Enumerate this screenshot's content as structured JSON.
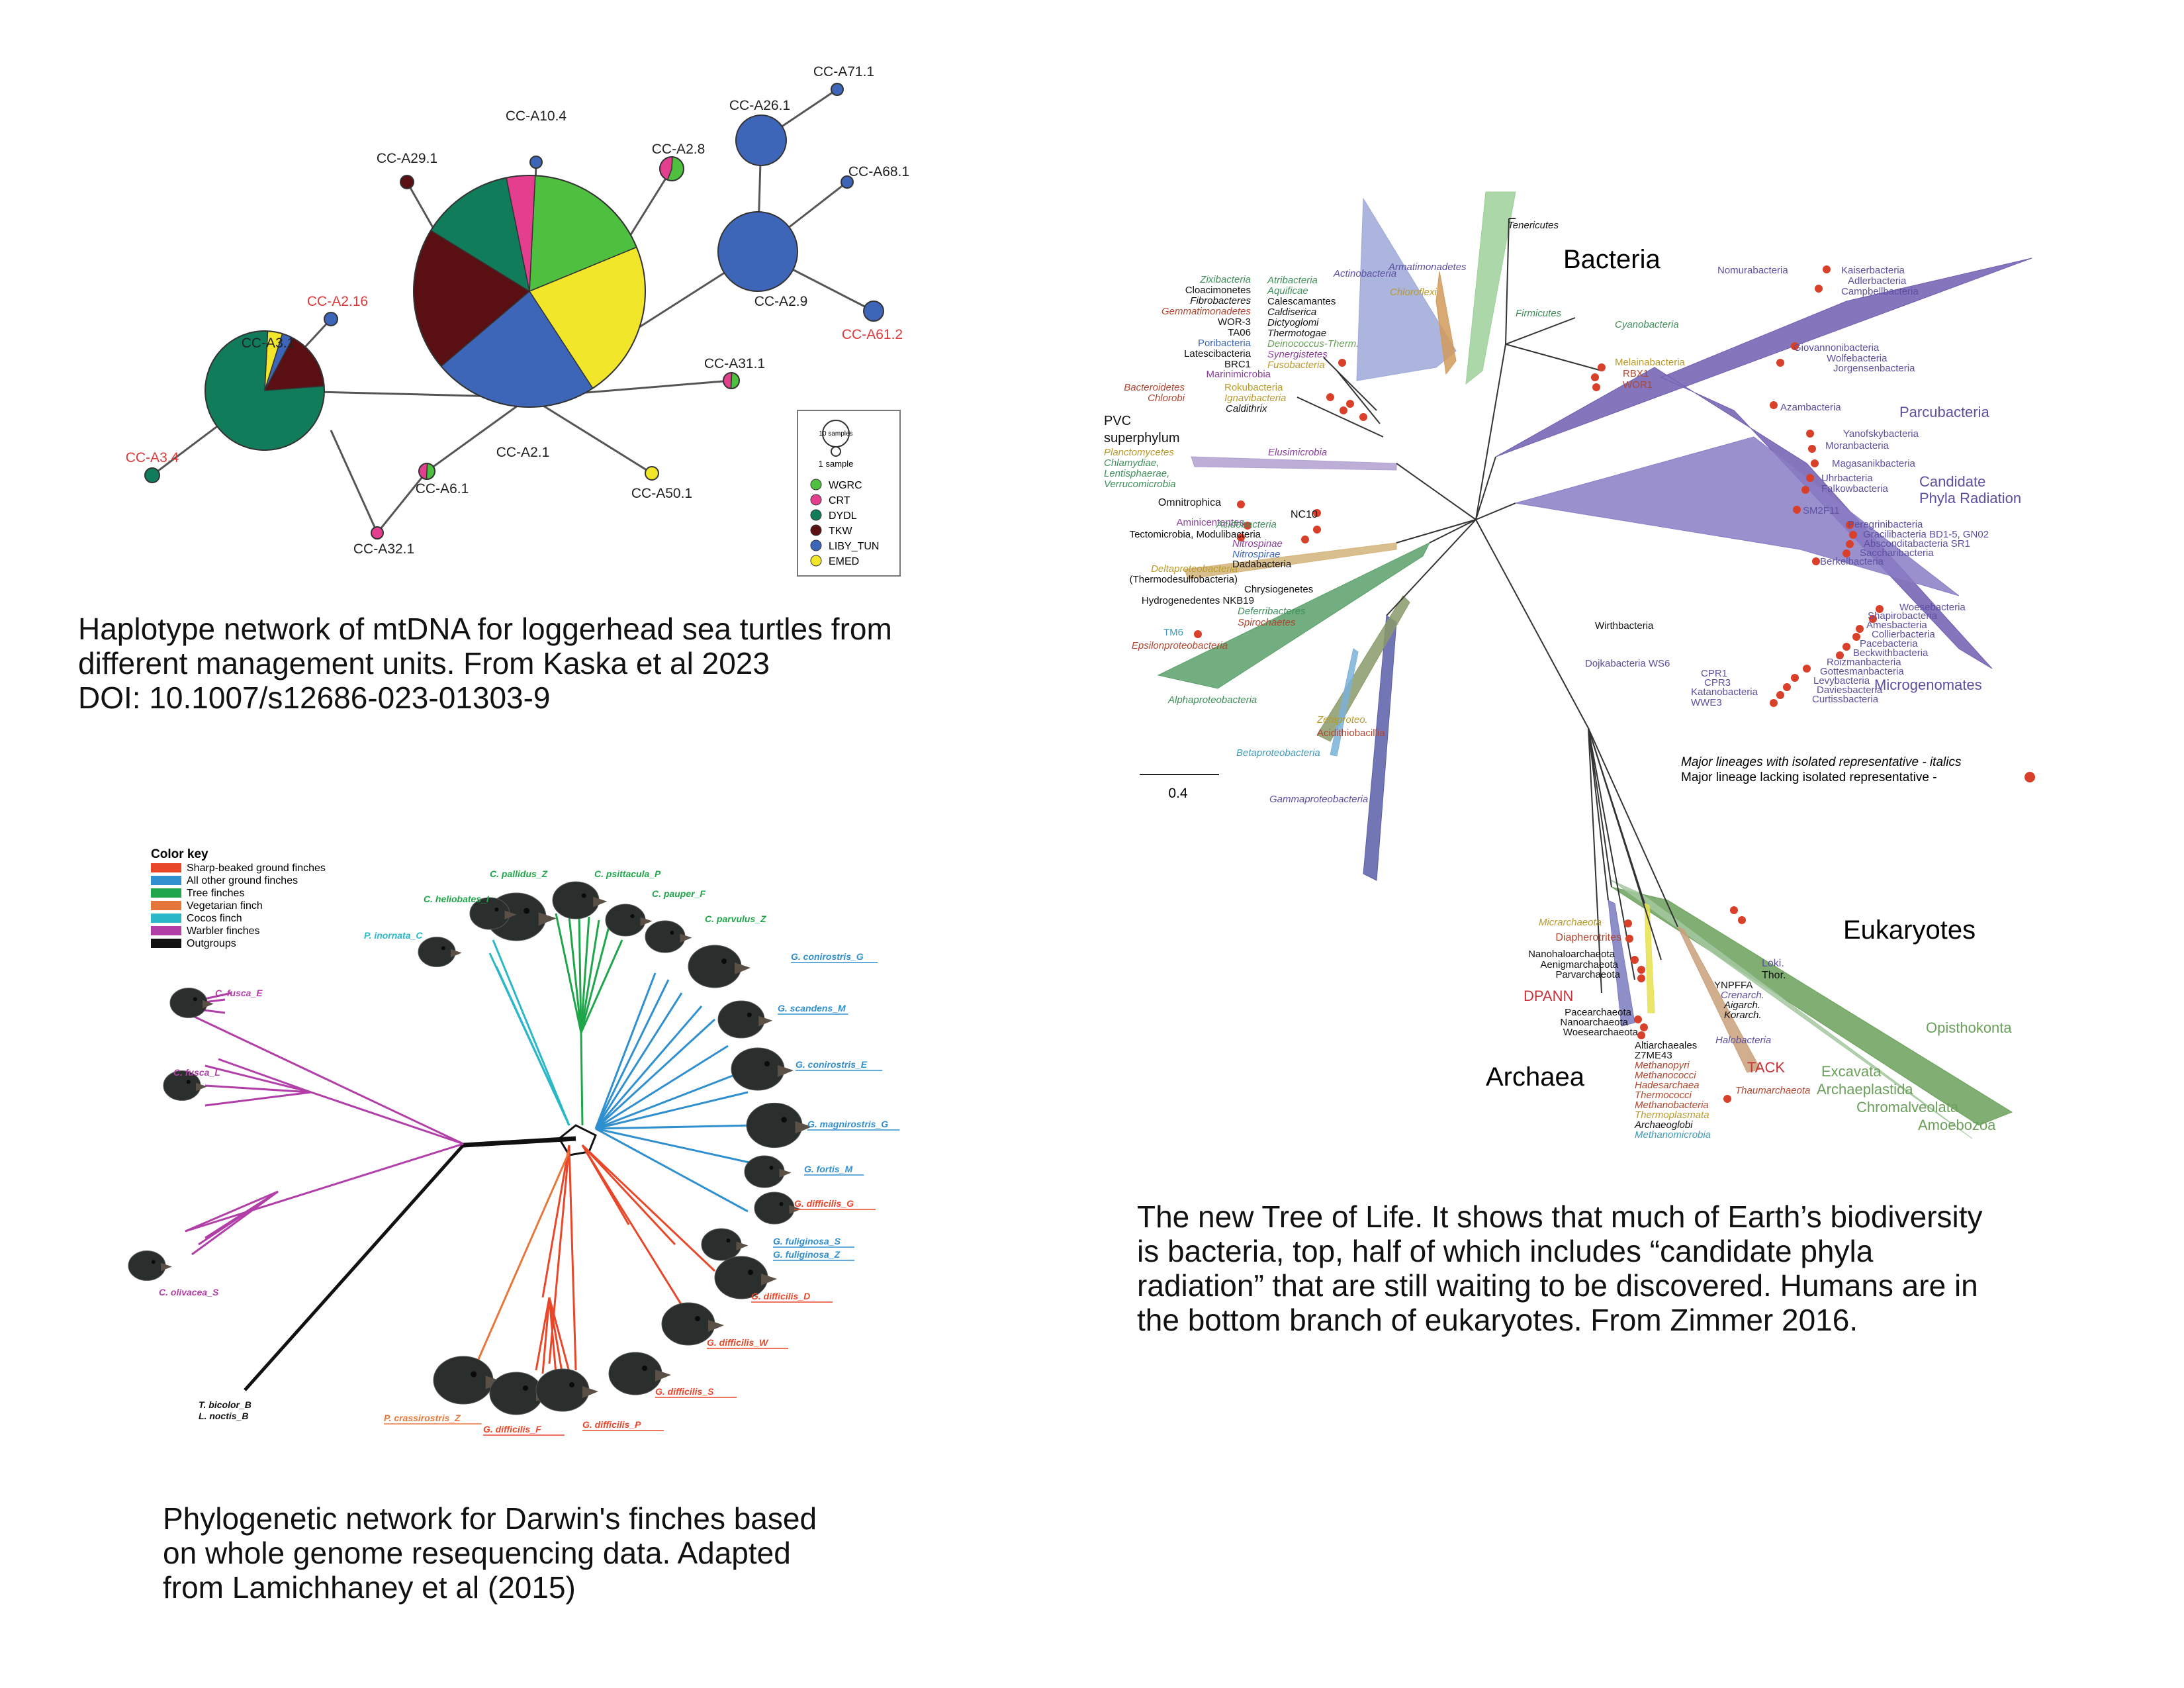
{
  "haplotype_network": {
    "nodes": [
      {
        "id": "CC-A2.1",
        "color": "#222222"
      },
      {
        "id": "CC-A3.1",
        "color": "#222222"
      },
      {
        "id": "CC-A2.9",
        "color": "#222222"
      },
      {
        "id": "CC-A26.1",
        "color": "#222222"
      },
      {
        "id": "CC-A71.1",
        "color": "#222222"
      },
      {
        "id": "CC-A68.1",
        "color": "#222222"
      },
      {
        "id": "CC-A61.2",
        "color": "#d93a3a"
      },
      {
        "id": "CC-A10.4",
        "color": "#222222"
      },
      {
        "id": "CC-A29.1",
        "color": "#222222"
      },
      {
        "id": "CC-A2.8",
        "color": "#222222"
      },
      {
        "id": "CC-A2.16",
        "color": "#d93a3a"
      },
      {
        "id": "CC-A31.1",
        "color": "#222222"
      },
      {
        "id": "CC-A50.1",
        "color": "#222222"
      },
      {
        "id": "CC-A6.1",
        "color": "#222222"
      },
      {
        "id": "CC-A32.1",
        "color": "#222222"
      },
      {
        "id": "CC-A3.4",
        "color": "#d93a3a"
      }
    ],
    "size_legend": [
      "10 samples",
      "1 sample"
    ],
    "legend": [
      {
        "name": "WGRC",
        "color": "#4fbf3f"
      },
      {
        "name": "CRT",
        "color": "#e43f8f"
      },
      {
        "name": "DYDL",
        "color": "#117c5a"
      },
      {
        "name": "TKW",
        "color": "#5a0f12"
      },
      {
        "name": "LIBY_TUN",
        "color": "#3e66b8"
      },
      {
        "name": "EMED",
        "color": "#f2e62a"
      }
    ],
    "caption": [
      "Haplotype network of mtDNA for loggerhead sea turtles from",
      "different management units. From Kaska et al 2023",
      "DOI: 10.1007/s12686-023-01303-9"
    ]
  },
  "tree_of_life": {
    "domains": [
      {
        "name": "Bacteria",
        "color": "#5c4fa0"
      },
      {
        "name": "Eukaryotes",
        "color": "#6aa05a"
      },
      {
        "name": "Archaea",
        "color": "#c8323a"
      }
    ],
    "labels_left": [
      {
        "text": "Zixibacteria",
        "color": "#3f8f5a"
      },
      {
        "text": "Cloacimonetes",
        "color": "#111111"
      },
      {
        "text": "Fibrobacteres",
        "color": "#111111"
      },
      {
        "text": "Gemmatimonadetes",
        "color": "#b0462f"
      },
      {
        "text": "WOR-3",
        "color": "#111111"
      },
      {
        "text": "TA06",
        "color": "#111111"
      },
      {
        "text": "Poribacteria",
        "color": "#3e66b8"
      },
      {
        "text": "Latescibacteria",
        "color": "#111111"
      },
      {
        "text": "BRC1",
        "color": "#111111"
      },
      {
        "text": "Marinimicrobia",
        "color": "#8a3f9a"
      },
      {
        "text": "Bacteroidetes",
        "color": "#b0462f"
      },
      {
        "text": "Chlorobi",
        "color": "#b0462f"
      },
      {
        "text": "PVC",
        "color": "#111111"
      },
      {
        "text": "superphylum",
        "color": "#111111"
      },
      {
        "text": "Planctomycetes",
        "color": "#b89a2a"
      },
      {
        "text": "Chlamydiae,",
        "color": "#3f8f5a"
      },
      {
        "text": "Lentisphaerae,",
        "color": "#3f8f5a"
      },
      {
        "text": "Verrucomicrobia",
        "color": "#3f8f5a"
      },
      {
        "text": "Omnitrophica",
        "color": "#111111"
      },
      {
        "text": "Aminicentantes",
        "color": "#8a3f9a"
      },
      {
        "text": "Tectomicrobia, Modulibacteria",
        "color": "#111111"
      },
      {
        "text": "Deltaproteobacteria",
        "color": "#b89a2a"
      },
      {
        "text": "(Thermodesulfobacteria)",
        "color": "#111111"
      },
      {
        "text": "Hydrogenedentes NKB19",
        "color": "#111111"
      },
      {
        "text": "TM6",
        "color": "#3e9ab8"
      },
      {
        "text": "Epsilonproteobacteria",
        "color": "#b0462f"
      },
      {
        "text": "Alphaproteobacteria",
        "color": "#3f8f5a"
      }
    ],
    "labels_top": [
      {
        "text": "Atribacteria",
        "color": "#3f8f5a"
      },
      {
        "text": "Aquificae",
        "color": "#3f8f5a"
      },
      {
        "text": "Calescamantes",
        "color": "#111111"
      },
      {
        "text": "Caldiserica",
        "color": "#111111"
      },
      {
        "text": "Dictyoglomi",
        "color": "#111111"
      },
      {
        "text": "Thermotogae",
        "color": "#111111"
      },
      {
        "text": "Deinococcus-Therm.",
        "color": "#6aa05a"
      },
      {
        "text": "Synergistetes",
        "color": "#8a3f9a"
      },
      {
        "text": "Fusobacteria",
        "color": "#b89a2a"
      },
      {
        "text": "Actinobacteria",
        "color": "#5c4fa0"
      },
      {
        "text": "Armatimonadetes",
        "color": "#5c4fa0"
      },
      {
        "text": "Chloroflexi",
        "color": "#b89a2a"
      },
      {
        "text": "Tenericutes",
        "color": "#111111"
      },
      {
        "text": "Firmicutes",
        "color": "#3f8f5a"
      },
      {
        "text": "Cyanobacteria",
        "color": "#3f8f5a"
      },
      {
        "text": "Melainabacteria",
        "color": "#b89a2a"
      },
      {
        "text": "RBX1",
        "color": "#b0462f"
      },
      {
        "text": "WOR1",
        "color": "#b0462f"
      },
      {
        "text": "Rokubacteria",
        "color": "#b89a2a"
      },
      {
        "text": "Ignavibacteria",
        "color": "#b89a2a"
      },
      {
        "text": "Caldithrix",
        "color": "#111111"
      },
      {
        "text": "Elusimicrobia",
        "color": "#8a3f9a"
      },
      {
        "text": "NC10",
        "color": "#111111"
      },
      {
        "text": "Acidobacteria",
        "color": "#3f8f5a"
      },
      {
        "text": "Nitrospinae",
        "color": "#8a3f9a"
      },
      {
        "text": "Nitrospirae",
        "color": "#3e66b8"
      },
      {
        "text": "Dadabacteria",
        "color": "#111111"
      },
      {
        "text": "Chrysiogenetes",
        "color": "#111111"
      },
      {
        "text": "Deferribacteres",
        "color": "#3f8f5a"
      },
      {
        "text": "Spirochaetes",
        "color": "#b0462f"
      },
      {
        "text": "Zetaproteo.",
        "color": "#b89a2a"
      },
      {
        "text": "Acidithiobacillia",
        "color": "#b0462f"
      },
      {
        "text": "Betaproteobacteria",
        "color": "#3e9ab8"
      },
      {
        "text": "Gammaproteobacteria",
        "color": "#5c4fa0"
      }
    ],
    "labels_right": [
      {
        "text": "Nomurabacteria",
        "color": "#5c4fa0"
      },
      {
        "text": "Kaiserbacteria",
        "color": "#5c4fa0"
      },
      {
        "text": "Adlerbacteria",
        "color": "#5c4fa0"
      },
      {
        "text": "Campbellbacteria",
        "color": "#5c4fa0"
      },
      {
        "text": "Giovannonibacteria",
        "color": "#5c4fa0"
      },
      {
        "text": "Wolfebacteria",
        "color": "#5c4fa0"
      },
      {
        "text": "Jorgensenbacteria",
        "color": "#5c4fa0"
      },
      {
        "text": "Azambacteria",
        "color": "#5c4fa0"
      },
      {
        "text": "Parcubacteria",
        "color": "#5c4fa0"
      },
      {
        "text": "Yanofskybacteria",
        "color": "#5c4fa0"
      },
      {
        "text": "Moranbacteria",
        "color": "#5c4fa0"
      },
      {
        "text": "Magasanikbacteria",
        "color": "#5c4fa0"
      },
      {
        "text": "Candidate",
        "color": "#5c4fa0"
      },
      {
        "text": "Phyla Radiation",
        "color": "#5c4fa0"
      },
      {
        "text": "Uhrbacteria",
        "color": "#5c4fa0"
      },
      {
        "text": "Falkowbacteria",
        "color": "#5c4fa0"
      },
      {
        "text": "SM2F11",
        "color": "#5c4fa0"
      },
      {
        "text": "Peregrinibacteria",
        "color": "#5c4fa0"
      },
      {
        "text": "Gracilibacteria BD1-5, GN02",
        "color": "#5c4fa0"
      },
      {
        "text": "Absconditabacteria SR1",
        "color": "#5c4fa0"
      },
      {
        "text": "Saccharibacteria",
        "color": "#5c4fa0"
      },
      {
        "text": "Berkelbacteria",
        "color": "#5c4fa0"
      },
      {
        "text": "Woesebacteria",
        "color": "#5c4fa0"
      },
      {
        "text": "Shapirobacteria",
        "color": "#5c4fa0"
      },
      {
        "text": "Amesbacteria",
        "color": "#5c4fa0"
      },
      {
        "text": "Collierbacteria",
        "color": "#5c4fa0"
      },
      {
        "text": "Pacebacteria",
        "color": "#5c4fa0"
      },
      {
        "text": "Beckwithbacteria",
        "color": "#5c4fa0"
      },
      {
        "text": "Roizmanbacteria",
        "color": "#5c4fa0"
      },
      {
        "text": "Gottesmanbacteria",
        "color": "#5c4fa0"
      },
      {
        "text": "Levybacteria",
        "color": "#5c4fa0"
      },
      {
        "text": "Daviesbacteria",
        "color": "#5c4fa0"
      },
      {
        "text": "Curtissbacteria",
        "color": "#5c4fa0"
      },
      {
        "text": "Microgenomates",
        "color": "#5c4fa0"
      },
      {
        "text": "Wirthbacteria",
        "color": "#111111"
      },
      {
        "text": "Dojkabacteria WS6",
        "color": "#5c4fa0"
      },
      {
        "text": "CPR1",
        "color": "#5c4fa0"
      },
      {
        "text": "CPR3",
        "color": "#5c4fa0"
      },
      {
        "text": "Katanobacteria",
        "color": "#5c4fa0"
      },
      {
        "text": "WWE3",
        "color": "#5c4fa0"
      }
    ],
    "labels_bottom": [
      {
        "text": "Micrarchaeota",
        "color": "#b89a2a"
      },
      {
        "text": "Diapherotrites",
        "color": "#b0462f"
      },
      {
        "text": "Nanohaloarchaeota",
        "color": "#111111"
      },
      {
        "text": "Aenigmarchaeota",
        "color": "#111111"
      },
      {
        "text": "Parvarchaeota",
        "color": "#111111"
      },
      {
        "text": "DPANN",
        "color": "#c8323a"
      },
      {
        "text": "Pacearchaeota",
        "color": "#111111"
      },
      {
        "text": "Nanoarchaeota",
        "color": "#111111"
      },
      {
        "text": "Woesearchaeota",
        "color": "#111111"
      },
      {
        "text": "YNPFFA",
        "color": "#111111"
      },
      {
        "text": "Crenarch.",
        "color": "#5c4fa0"
      },
      {
        "text": "Aigarch.",
        "color": "#111111"
      },
      {
        "text": "Korarch.",
        "color": "#111111"
      },
      {
        "text": "Halobacteria",
        "color": "#5c4fa0"
      },
      {
        "text": "Altiarchaeales",
        "color": "#111111"
      },
      {
        "text": "Z7ME43",
        "color": "#111111"
      },
      {
        "text": "Methanopyri",
        "color": "#b0462f"
      },
      {
        "text": "Methanococci",
        "color": "#b0462f"
      },
      {
        "text": "Hadesarchaea",
        "color": "#b0462f"
      },
      {
        "text": "Thermococci",
        "color": "#b0462f"
      },
      {
        "text": "Methanobacteria",
        "color": "#b0462f"
      },
      {
        "text": "Thermoplasmata",
        "color": "#b89a2a"
      },
      {
        "text": "Archaeoglobi",
        "color": "#111111"
      },
      {
        "text": "Methanomicrobia",
        "color": "#3e9ab8"
      },
      {
        "text": "TACK",
        "color": "#c8323a"
      },
      {
        "text": "Thaumarchaeota",
        "color": "#b0462f"
      },
      {
        "text": "Loki.",
        "color": "#5c4fa0"
      },
      {
        "text": "Thor.",
        "color": "#111111"
      },
      {
        "text": "Opisthokonta",
        "color": "#6aa05a"
      },
      {
        "text": "Excavata",
        "color": "#6aa05a"
      },
      {
        "text": "Archaeplastida",
        "color": "#6aa05a"
      },
      {
        "text": "Chromalveolata",
        "color": "#6aa05a"
      },
      {
        "text": "Amoebozoa",
        "color": "#6aa05a"
      }
    ],
    "legend_italic": "Major lineages with isolated representative - italics",
    "legend_dot": "Major lineage lacking isolated representative -",
    "scale": "0.4",
    "caption": [
      "The new Tree of Life. It shows that much of Earth’s biodiversity",
      "is bacteria, top, half of which includes “candidate phyla",
      "radiation” that are still waiting to be discovered. Humans are in",
      "the bottom branch of eukaryotes. From Zimmer 2016."
    ]
  },
  "finch_network": {
    "color_key_title": "Color key",
    "color_key": [
      {
        "name": "Sharp-beaked ground finches",
        "color": "#e8472a"
      },
      {
        "name": "All other ground finches",
        "color": "#2f8fcf"
      },
      {
        "name": "Tree finches",
        "color": "#1fa64a"
      },
      {
        "name": "Vegetarian finch",
        "color": "#e8763a"
      },
      {
        "name": "Cocos finch",
        "color": "#2ab8c8"
      },
      {
        "name": "Warbler finches",
        "color": "#b23fa8"
      },
      {
        "name": "Outgroups",
        "color": "#111111"
      }
    ],
    "taxa": [
      {
        "text": "C. pallidus_Z",
        "color": "#1fa64a"
      },
      {
        "text": "C. psittacula_P",
        "color": "#1fa64a"
      },
      {
        "text": "C. heliobates_I",
        "color": "#1fa64a"
      },
      {
        "text": "C. pauper_F",
        "color": "#1fa64a"
      },
      {
        "text": "C. parvulus_Z",
        "color": "#1fa64a"
      },
      {
        "text": "P. inornata_C",
        "color": "#2ab8c8"
      },
      {
        "text": "G. conirostris_G",
        "color": "#2f8fcf"
      },
      {
        "text": "G. scandens_M",
        "color": "#2f8fcf"
      },
      {
        "text": "G. conirostris_E",
        "color": "#2f8fcf"
      },
      {
        "text": "G. magnirostris_G",
        "color": "#2f8fcf"
      },
      {
        "text": "G. fortis_M",
        "color": "#2f8fcf"
      },
      {
        "text": "G. difficilis_G",
        "color": "#e8472a"
      },
      {
        "text": "G. fuliginosa_S",
        "color": "#2f8fcf"
      },
      {
        "text": "G. fuliginosa_Z",
        "color": "#2f8fcf"
      },
      {
        "text": "G. difficilis_D",
        "color": "#e8472a"
      },
      {
        "text": "G. difficilis_W",
        "color": "#e8472a"
      },
      {
        "text": "G. difficilis_S",
        "color": "#e8472a"
      },
      {
        "text": "G. difficilis_P",
        "color": "#e8472a"
      },
      {
        "text": "G. difficilis_F",
        "color": "#e8472a"
      },
      {
        "text": "P. crassirostris_Z",
        "color": "#e8763a"
      },
      {
        "text": "C. fusca_E",
        "color": "#b23fa8"
      },
      {
        "text": "C. fusca_L",
        "color": "#b23fa8"
      },
      {
        "text": "C. olivacea_S",
        "color": "#b23fa8"
      },
      {
        "text": "T. bicolor_B",
        "color": "#111111"
      },
      {
        "text": "L. noctis_B",
        "color": "#111111"
      }
    ],
    "caption": [
      "Phylogenetic network for Darwin's finches based",
      "on whole genome resequencing data. Adapted",
      "from Lamichhaney et al (2015)"
    ]
  }
}
